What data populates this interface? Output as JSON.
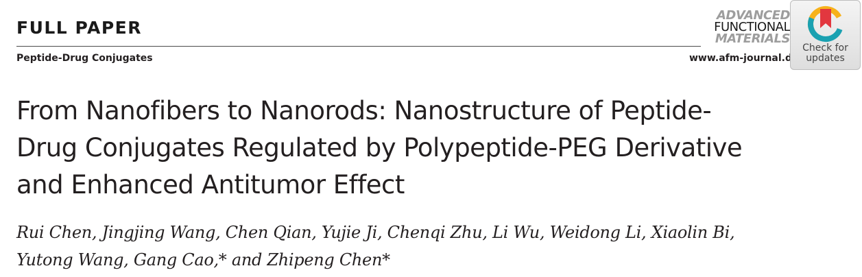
{
  "header": {
    "section_label": "FULL PAPER",
    "topic": "Peptide-Drug Conjugates",
    "journal_logo": {
      "line1": "ADVANCED",
      "line2": "FUNCTIONAL",
      "line3": "MATERIALS"
    },
    "journal_url": "www.afm-journal.de",
    "check_badge": {
      "line1": "Check for",
      "line2": "updates"
    }
  },
  "article": {
    "title_lines": [
      "From Nanofibers to Nanorods: Nanostructure of Peptide-",
      "Drug Conjugates Regulated by Polypeptide-PEG Derivative",
      "and Enhanced Antitumor Effect"
    ],
    "author_lines": [
      "Rui Chen, Jingjing Wang, Chen Qian, Yujie Ji, Chenqi Zhu, Li Wu, Weidong Li, Xiaolin Bi,",
      "Yutong Wang, Gang Cao,* and Zhipeng Chen*"
    ]
  },
  "colors": {
    "text": "#231f20",
    "logo_gray": "#9d9d9d",
    "badge_red": "#e2373f",
    "badge_yellow": "#f7b21b",
    "badge_teal": "#1aa1b1"
  }
}
